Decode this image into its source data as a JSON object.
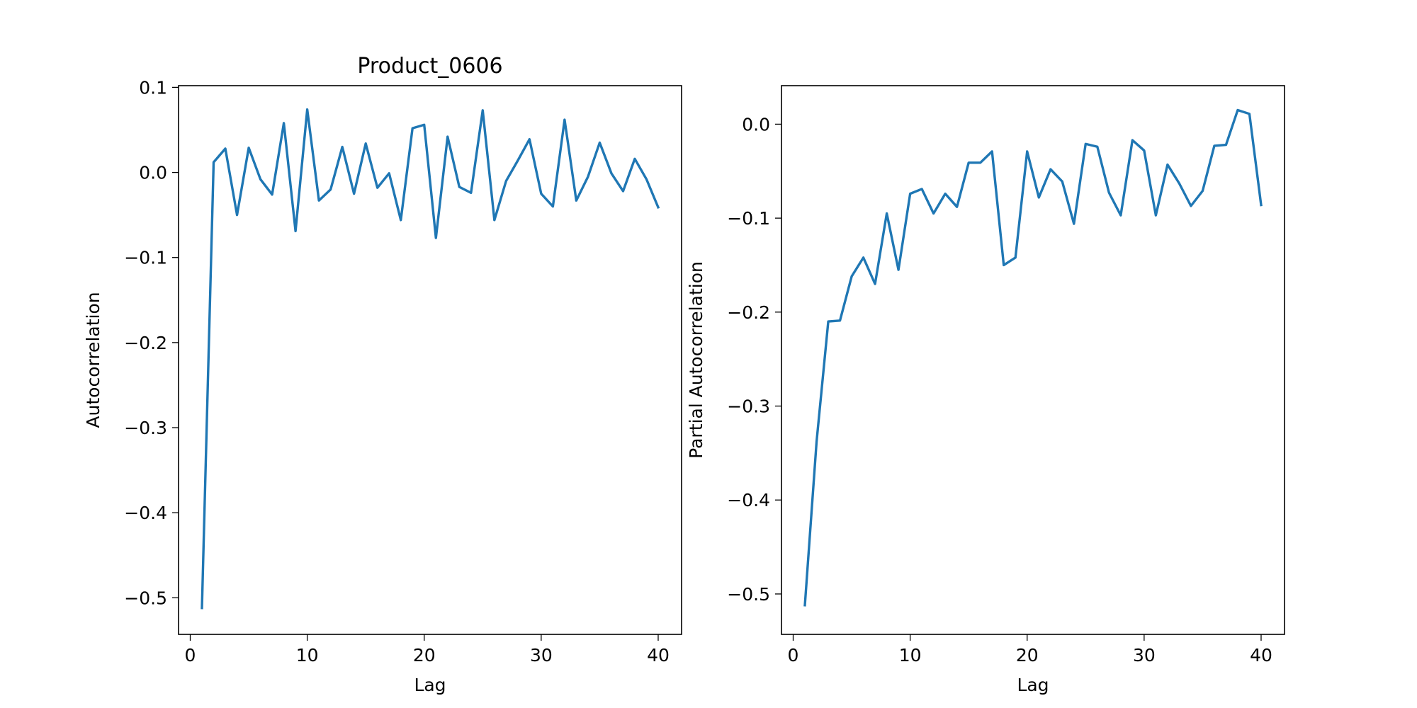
{
  "chart_data": [
    {
      "type": "line",
      "title": "Product_0606",
      "xlabel": "Lag",
      "ylabel": "Autocorrelation",
      "xlim": [
        -1,
        42
      ],
      "ylim": [
        -0.543,
        0.102
      ],
      "xticks": [
        0,
        10,
        20,
        30,
        40
      ],
      "xtick_labels": [
        "0",
        "10",
        "20",
        "30",
        "40"
      ],
      "yticks": [
        0.1,
        0.0,
        -0.1,
        -0.2,
        -0.3,
        -0.4,
        -0.5
      ],
      "ytick_labels": [
        "0.1",
        "0.0",
        "−0.1",
        "−0.2",
        "−0.3",
        "−0.4",
        "−0.5"
      ],
      "grid": false,
      "color": "#1f77b4",
      "series": [
        {
          "x": [
            1,
            2,
            3,
            4,
            5,
            6,
            7,
            8,
            9,
            10,
            11,
            12,
            13,
            14,
            15,
            16,
            17,
            18,
            19,
            20,
            21,
            22,
            23,
            24,
            25,
            26,
            27,
            28,
            29,
            30,
            31,
            32,
            33,
            34,
            35,
            36,
            37,
            38,
            39,
            40
          ],
          "values": [
            -0.512,
            0.012,
            0.028,
            -0.05,
            0.029,
            -0.008,
            -0.026,
            0.058,
            -0.069,
            0.074,
            -0.033,
            -0.02,
            0.03,
            -0.025,
            0.034,
            -0.018,
            -0.001,
            -0.056,
            0.052,
            0.056,
            -0.077,
            0.042,
            -0.017,
            -0.024,
            0.073,
            -0.056,
            -0.01,
            0.014,
            0.039,
            -0.025,
            -0.04,
            0.062,
            -0.033,
            -0.005,
            0.035,
            -0.001,
            -0.022,
            0.016,
            -0.008,
            -0.041
          ]
        }
      ]
    },
    {
      "type": "line",
      "title": "",
      "xlabel": "Lag",
      "ylabel": "Partial Autocorrelation",
      "xlim": [
        -1,
        42
      ],
      "ylim": [
        -0.543,
        0.041
      ],
      "xticks": [
        0,
        10,
        20,
        30,
        40
      ],
      "xtick_labels": [
        "0",
        "10",
        "20",
        "30",
        "40"
      ],
      "yticks": [
        0.0,
        -0.1,
        -0.2,
        -0.3,
        -0.4,
        -0.5
      ],
      "ytick_labels": [
        "0.0",
        "−0.1",
        "−0.2",
        "−0.3",
        "−0.4",
        "−0.5"
      ],
      "grid": false,
      "color": "#1f77b4",
      "series": [
        {
          "x": [
            1,
            2,
            3,
            4,
            5,
            6,
            7,
            8,
            9,
            10,
            11,
            12,
            13,
            14,
            15,
            16,
            17,
            18,
            19,
            20,
            21,
            22,
            23,
            24,
            25,
            26,
            27,
            28,
            29,
            30,
            31,
            32,
            33,
            34,
            35,
            36,
            37,
            38,
            39,
            40
          ],
          "values": [
            -0.512,
            -0.338,
            -0.21,
            -0.209,
            -0.162,
            -0.142,
            -0.17,
            -0.095,
            -0.155,
            -0.074,
            -0.069,
            -0.095,
            -0.074,
            -0.088,
            -0.041,
            -0.041,
            -0.029,
            -0.15,
            -0.142,
            -0.029,
            -0.078,
            -0.048,
            -0.061,
            -0.106,
            -0.021,
            -0.024,
            -0.073,
            -0.097,
            -0.017,
            -0.028,
            -0.097,
            -0.043,
            -0.063,
            -0.087,
            -0.071,
            -0.023,
            -0.022,
            0.015,
            0.011,
            -0.086
          ]
        }
      ]
    }
  ]
}
